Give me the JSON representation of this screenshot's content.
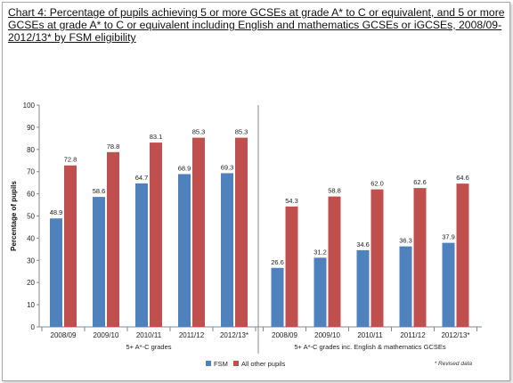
{
  "title": "Chart 4: Percentage of pupils achieving 5 or more GCSEs at grade A* to C or equivalent, and 5 or more GCSEs at grade A* to C or equivalent including English and mathematics GCSEs or iGCSEs, 2008/09-2012/13* by FSM eligibility",
  "note": "* Revised data",
  "colors": {
    "FSM": "#4f81bd",
    "All other pupils": "#c0504d"
  },
  "chart_data": {
    "type": "bar",
    "ylabel": "Percentage of pupils",
    "ylim": [
      0,
      100
    ],
    "yticks": [
      0,
      10,
      20,
      30,
      40,
      50,
      60,
      70,
      80,
      90,
      100
    ],
    "legend_position": "bottom",
    "groups": [
      {
        "label": "5+ A*-C grades",
        "categories": [
          "2008/09",
          "2009/10",
          "2010/11",
          "2011/12",
          "2012/13*"
        ],
        "series": [
          {
            "name": "FSM",
            "values": [
              48.9,
              58.6,
              64.7,
              68.9,
              69.3
            ]
          },
          {
            "name": "All other pupils",
            "values": [
              72.8,
              78.8,
              83.1,
              85.3,
              85.3
            ]
          }
        ]
      },
      {
        "label": "5+ A*-C grades inc. English & mathematics GCSEs",
        "categories": [
          "2008/09",
          "2009/10",
          "2010/11",
          "2011/12",
          "2012/13*"
        ],
        "series": [
          {
            "name": "FSM",
            "values": [
              26.6,
              31.2,
              34.6,
              36.3,
              37.9
            ]
          },
          {
            "name": "All other pupils",
            "values": [
              54.3,
              58.8,
              62.0,
              62.6,
              64.6
            ]
          }
        ]
      }
    ]
  }
}
